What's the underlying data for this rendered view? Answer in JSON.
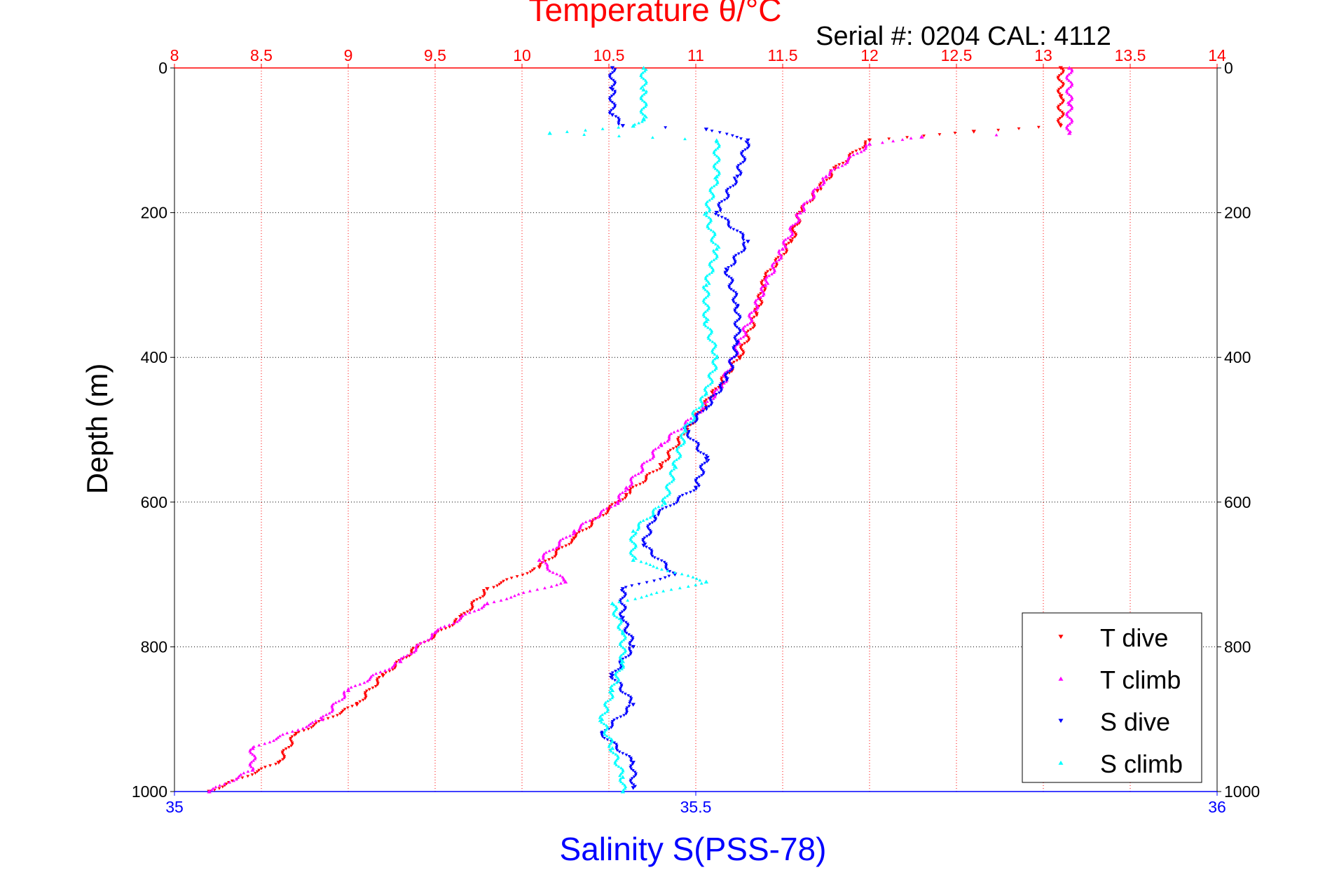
{
  "chart_data": {
    "type": "scatter",
    "title": "Temperature θ/°C",
    "subtitle": "Serial #: 0204  CAL: 4112",
    "xlabel": "Salinity S(PSS-78)",
    "ylabel": "Depth (m)",
    "top_axis": {
      "range": [
        8,
        14
      ],
      "tick_labels": [
        "8",
        "8.5",
        "9",
        "9.5",
        "10",
        "10.5",
        "11",
        "11.5",
        "12",
        "12.5",
        "13",
        "13.5",
        "14"
      ],
      "color": "#ff0000"
    },
    "bottom_axis": {
      "range": [
        35,
        36
      ],
      "tick_labels": [
        "35",
        "35.5",
        "36"
      ],
      "color": "#0000ff"
    },
    "y_axis": {
      "range": [
        0,
        1000
      ],
      "reversed": true,
      "tick_labels": [
        "0",
        "200",
        "400",
        "600",
        "800",
        "1000"
      ]
    },
    "grid": true,
    "legend_position": "bottom-right",
    "series": [
      {
        "name": "T dive",
        "axis": "top",
        "color": "#ff0000",
        "marker": "triangle-down",
        "points": [
          [
            13.1,
            0
          ],
          [
            13.1,
            40
          ],
          [
            13.1,
            80
          ],
          [
            12.6,
            88
          ],
          [
            12.0,
            100
          ],
          [
            11.8,
            140
          ],
          [
            11.7,
            170
          ],
          [
            11.6,
            200
          ],
          [
            11.55,
            240
          ],
          [
            11.4,
            290
          ],
          [
            11.35,
            340
          ],
          [
            11.25,
            400
          ],
          [
            11.1,
            450
          ],
          [
            10.95,
            500
          ],
          [
            10.8,
            550
          ],
          [
            10.6,
            590
          ],
          [
            10.5,
            610
          ],
          [
            10.3,
            650
          ],
          [
            10.1,
            690
          ],
          [
            9.8,
            720
          ],
          [
            9.65,
            760
          ],
          [
            9.4,
            800
          ],
          [
            9.2,
            840
          ],
          [
            9.05,
            880
          ],
          [
            8.7,
            920
          ],
          [
            8.6,
            960
          ],
          [
            8.2,
            1000
          ]
        ]
      },
      {
        "name": "T climb",
        "axis": "top",
        "color": "#ff00ff",
        "marker": "triangle-up",
        "points": [
          [
            13.15,
            0
          ],
          [
            13.15,
            50
          ],
          [
            13.15,
            90
          ],
          [
            12.3,
            95
          ],
          [
            12.0,
            105
          ],
          [
            11.75,
            150
          ],
          [
            11.6,
            200
          ],
          [
            11.5,
            250
          ],
          [
            11.4,
            300
          ],
          [
            11.25,
            380
          ],
          [
            11.15,
            440
          ],
          [
            11.0,
            480
          ],
          [
            10.8,
            520
          ],
          [
            10.6,
            580
          ],
          [
            10.55,
            600
          ],
          [
            10.3,
            640
          ],
          [
            10.1,
            680
          ],
          [
            10.25,
            710
          ],
          [
            9.8,
            740
          ],
          [
            9.5,
            780
          ],
          [
            9.3,
            820
          ],
          [
            9.0,
            860
          ],
          [
            8.85,
            900
          ],
          [
            8.45,
            940
          ],
          [
            8.45,
            970
          ],
          [
            8.2,
            1000
          ]
        ]
      },
      {
        "name": "S dive",
        "axis": "bottom",
        "color": "#0000ff",
        "marker": "triangle-down",
        "points": [
          [
            35.42,
            0
          ],
          [
            35.42,
            30
          ],
          [
            35.42,
            65
          ],
          [
            35.43,
            80
          ],
          [
            35.51,
            85
          ],
          [
            35.55,
            100
          ],
          [
            35.54,
            150
          ],
          [
            35.52,
            200
          ],
          [
            35.55,
            240
          ],
          [
            35.53,
            280
          ],
          [
            35.54,
            330
          ],
          [
            35.54,
            380
          ],
          [
            35.53,
            430
          ],
          [
            35.51,
            470
          ],
          [
            35.49,
            500
          ],
          [
            35.51,
            540
          ],
          [
            35.5,
            580
          ],
          [
            35.46,
            620
          ],
          [
            35.45,
            660
          ],
          [
            35.48,
            700
          ],
          [
            35.43,
            720
          ],
          [
            35.43,
            760
          ],
          [
            35.44,
            800
          ],
          [
            35.42,
            840
          ],
          [
            35.44,
            880
          ],
          [
            35.41,
            920
          ],
          [
            35.44,
            960
          ],
          [
            35.44,
            995
          ]
        ]
      },
      {
        "name": "S climb",
        "axis": "bottom",
        "color": "#00ffff",
        "marker": "triangle-up",
        "points": [
          [
            35.45,
            0
          ],
          [
            35.45,
            30
          ],
          [
            35.45,
            70
          ],
          [
            35.44,
            80
          ],
          [
            35.36,
            90
          ],
          [
            35.52,
            100
          ],
          [
            35.52,
            150
          ],
          [
            35.51,
            200
          ],
          [
            35.52,
            250
          ],
          [
            35.51,
            300
          ],
          [
            35.51,
            350
          ],
          [
            35.52,
            400
          ],
          [
            35.51,
            450
          ],
          [
            35.49,
            500
          ],
          [
            35.48,
            550
          ],
          [
            35.47,
            600
          ],
          [
            35.44,
            640
          ],
          [
            35.44,
            680
          ],
          [
            35.51,
            710
          ],
          [
            35.42,
            740
          ],
          [
            35.43,
            780
          ],
          [
            35.43,
            820
          ],
          [
            35.42,
            860
          ],
          [
            35.41,
            900
          ],
          [
            35.42,
            940
          ],
          [
            35.43,
            980
          ],
          [
            35.43,
            1000
          ]
        ]
      }
    ]
  }
}
